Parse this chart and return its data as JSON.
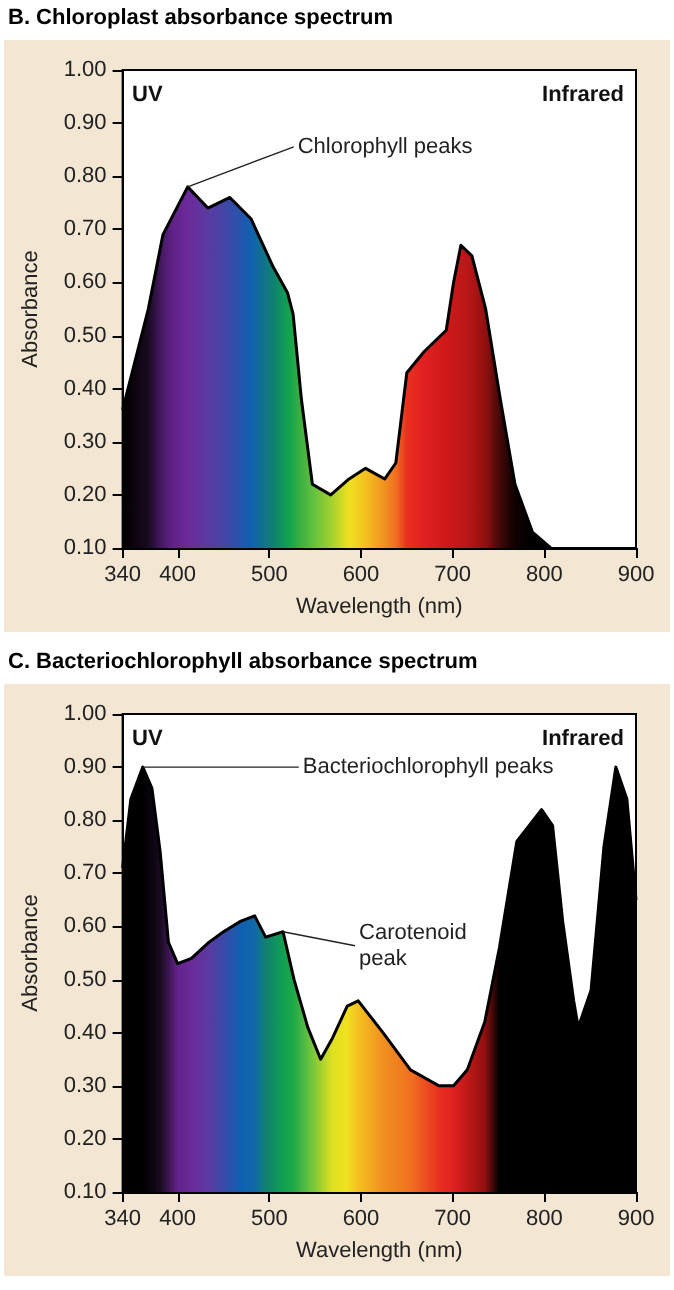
{
  "chart_data": [
    {
      "type": "area",
      "title": "B. Chloroplast absorbance spectrum",
      "xlabel": "Wavelength (nm)",
      "ylabel": "Absorbance",
      "xlim": [
        340,
        900
      ],
      "xticks": [
        340,
        400,
        500,
        600,
        700,
        800,
        900
      ],
      "ylim": [
        0.1,
        1.0
      ],
      "yticks": [
        {
          "value": 0.1,
          "label": "0.10"
        },
        {
          "value": 0.2,
          "label": "0.20"
        },
        {
          "value": 0.3,
          "label": "0.30"
        },
        {
          "value": 0.4,
          "label": "0.40"
        },
        {
          "value": 0.5,
          "label": "0.50"
        },
        {
          "value": 0.6,
          "label": "0.60"
        },
        {
          "value": 0.7,
          "label": "0.70"
        },
        {
          "value": 0.8,
          "label": "0.80"
        },
        {
          "value": 0.9,
          "label": "0.90"
        },
        {
          "value": 1.0,
          "label": "1.00"
        }
      ],
      "grid": false,
      "marker": "none",
      "series": [
        {
          "color": "#000000",
          "x": [
            340,
            368,
            384,
            396,
            411,
            433,
            457,
            480,
            504,
            520,
            526,
            535,
            547,
            567,
            587,
            605,
            626,
            638,
            650,
            669,
            693,
            701,
            709,
            721,
            736,
            752,
            768,
            787,
            807
          ],
          "values": [
            0.36,
            0.55,
            0.69,
            0.73,
            0.78,
            0.74,
            0.76,
            0.72,
            0.63,
            0.58,
            0.54,
            0.38,
            0.22,
            0.2,
            0.23,
            0.25,
            0.23,
            0.26,
            0.43,
            0.47,
            0.51,
            0.6,
            0.67,
            0.65,
            0.55,
            0.38,
            0.22,
            0.13,
            0.1
          ],
          "colors": [
            "#000000",
            "#1a0a20",
            "#4a1a6a",
            "#62238a",
            "#6a2a9a",
            "#5a3aa0",
            "#3a4aa8",
            "#1060b0",
            "#108070",
            "#10a050",
            "#20a848",
            "#40b040",
            "#60c040",
            "#a0d030",
            "#f0e020",
            "#f5c020",
            "#f09020",
            "#f07020",
            "#e83020",
            "#e02020",
            "#d01818",
            "#c81818",
            "#c01818",
            "#b01515",
            "#901010",
            "#400808",
            "#100000",
            "#000000",
            "#000000"
          ]
        }
      ],
      "annotations": [
        "UV",
        "Infrared",
        {
          "text": "Chlorophyll peaks",
          "x": 411,
          "y": 0.78
        }
      ]
    },
    {
      "type": "area",
      "title": "C. Bacteriochlorophyll absorbance spectrum",
      "xlabel": "Wavelength (nm)",
      "ylabel": "Absorbance",
      "xlim": [
        340,
        900
      ],
      "xticks": [
        340,
        400,
        500,
        600,
        700,
        800,
        900
      ],
      "ylim": [
        0.1,
        1.0
      ],
      "yticks": [
        {
          "value": 0.1,
          "label": "0.10"
        },
        {
          "value": 0.2,
          "label": "0.20"
        },
        {
          "value": 0.3,
          "label": "0.30"
        },
        {
          "value": 0.4,
          "label": "0.40"
        },
        {
          "value": 0.5,
          "label": "0.50"
        },
        {
          "value": 0.6,
          "label": "0.60"
        },
        {
          "value": 0.7,
          "label": "0.70"
        },
        {
          "value": 0.8,
          "label": "0.80"
        },
        {
          "value": 0.9,
          "label": "0.90"
        },
        {
          "value": 1.0,
          "label": "1.00"
        }
      ],
      "grid": false,
      "marker": "none",
      "series": [
        {
          "color": "#000000",
          "x": [
            340,
            349,
            362,
            372,
            381,
            390,
            400,
            415,
            434,
            450,
            469,
            484,
            496,
            515,
            527,
            542,
            556,
            569,
            585,
            597,
            624,
            654,
            685,
            701,
            716,
            735,
            751,
            770,
            797,
            809,
            820,
            832,
            837,
            851,
            865,
            878,
            890,
            900
          ],
          "values": [
            0.71,
            0.84,
            0.9,
            0.86,
            0.74,
            0.57,
            0.53,
            0.54,
            0.57,
            0.59,
            0.61,
            0.62,
            0.58,
            0.59,
            0.5,
            0.41,
            0.35,
            0.39,
            0.45,
            0.46,
            0.4,
            0.33,
            0.3,
            0.3,
            0.33,
            0.42,
            0.56,
            0.76,
            0.82,
            0.79,
            0.61,
            0.46,
            0.41,
            0.48,
            0.75,
            0.9,
            0.84,
            0.65
          ],
          "colors": [
            "#000000",
            "#000000",
            "#000000",
            "#0a0510",
            "#1a0a20",
            "#3a1550",
            "#62238a",
            "#6a2a9a",
            "#5a3aa0",
            "#3a4aa8",
            "#1060b0",
            "#1068a8",
            "#108070",
            "#10a050",
            "#20a848",
            "#60c040",
            "#a0d030",
            "#e0e020",
            "#f0e020",
            "#f5c020",
            "#f09020",
            "#f07020",
            "#e83020",
            "#e02020",
            "#c01818",
            "#901010",
            "#000000",
            "#000000",
            "#000000",
            "#000000",
            "#000000",
            "#000000",
            "#000000",
            "#000000",
            "#000000",
            "#000000",
            "#000000",
            "#000000"
          ]
        }
      ],
      "annotations": [
        "UV",
        "Infrared",
        {
          "text": "Bacteriochlorophyll peaks",
          "x": 362,
          "y": 0.9
        },
        {
          "text": "Carotenoid\npeak",
          "x": 515,
          "y": 0.59
        }
      ]
    }
  ]
}
